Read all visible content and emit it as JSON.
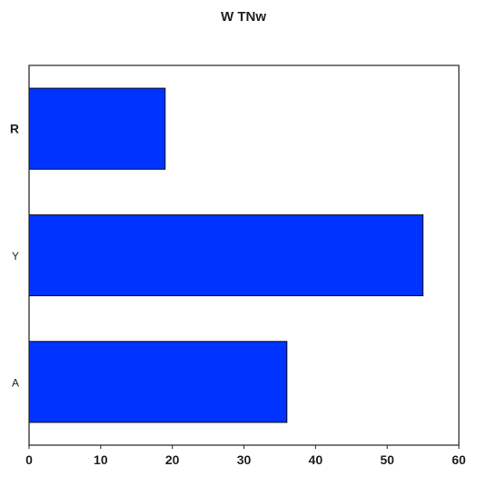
{
  "chart_data": {
    "type": "bar",
    "orientation": "horizontal",
    "title": "W TNw",
    "xlabel": "",
    "ylabel": "",
    "categories": [
      "A",
      "Y",
      "R"
    ],
    "values": [
      36,
      55,
      19
    ],
    "xlim": [
      0,
      60
    ],
    "xticks": [
      0,
      10,
      20,
      30,
      40,
      50,
      60
    ],
    "bar_color": "#0033ff",
    "grid": false,
    "legend": "none"
  }
}
